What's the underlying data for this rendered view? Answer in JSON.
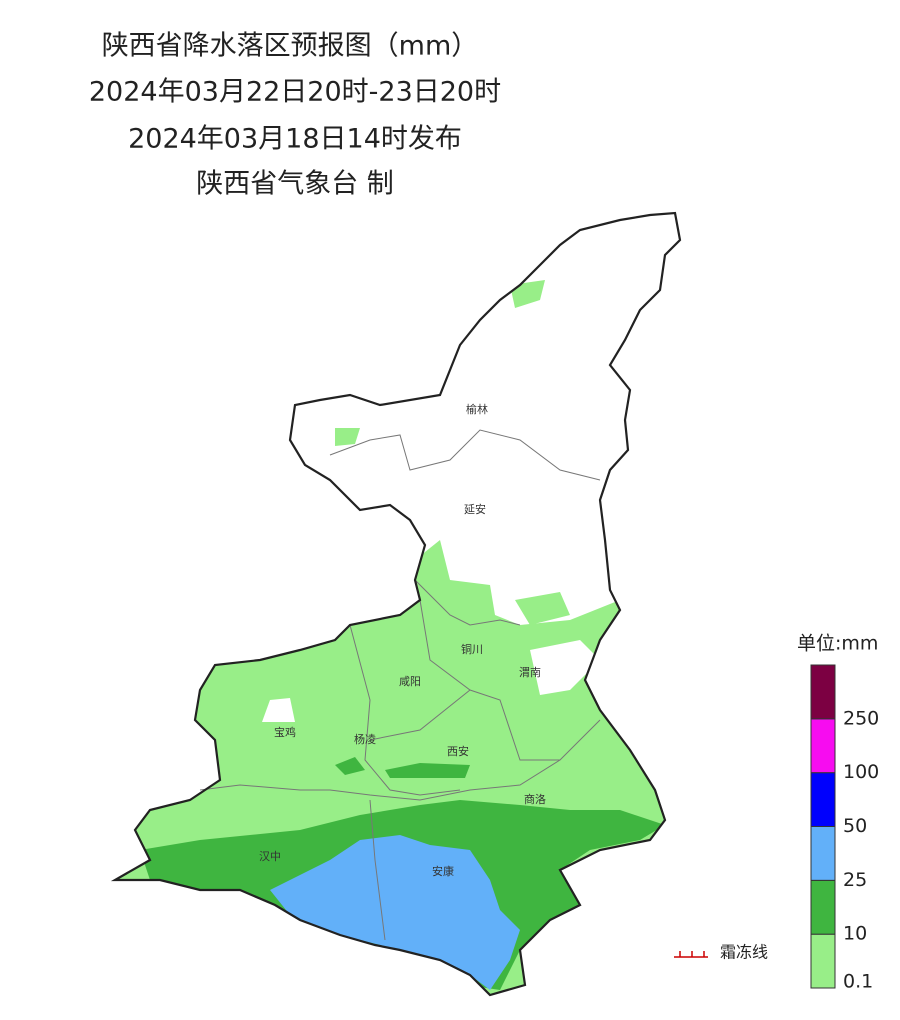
{
  "header": {
    "title": "陕西省降水落区预报图（mm）",
    "period": "2024年03月22日20时-23日20时",
    "issued": "2024年03月18日14时发布",
    "issuer": "陕西省气象台 制"
  },
  "cities": [
    "榆林",
    "延安",
    "铜川",
    "渭南",
    "咸阳",
    "宝鸡",
    "杨凌",
    "西安",
    "商洛",
    "汉中",
    "安康"
  ],
  "legend": {
    "title": "单位:mm",
    "ticks": [
      0.1,
      10,
      25,
      50,
      100,
      250
    ],
    "colors": [
      "#98ee88",
      "#3fb540",
      "#62b0f9",
      "#0000fd",
      "#f70cf0",
      "#7c0042"
    ]
  },
  "frost_line": "霜冻线"
}
